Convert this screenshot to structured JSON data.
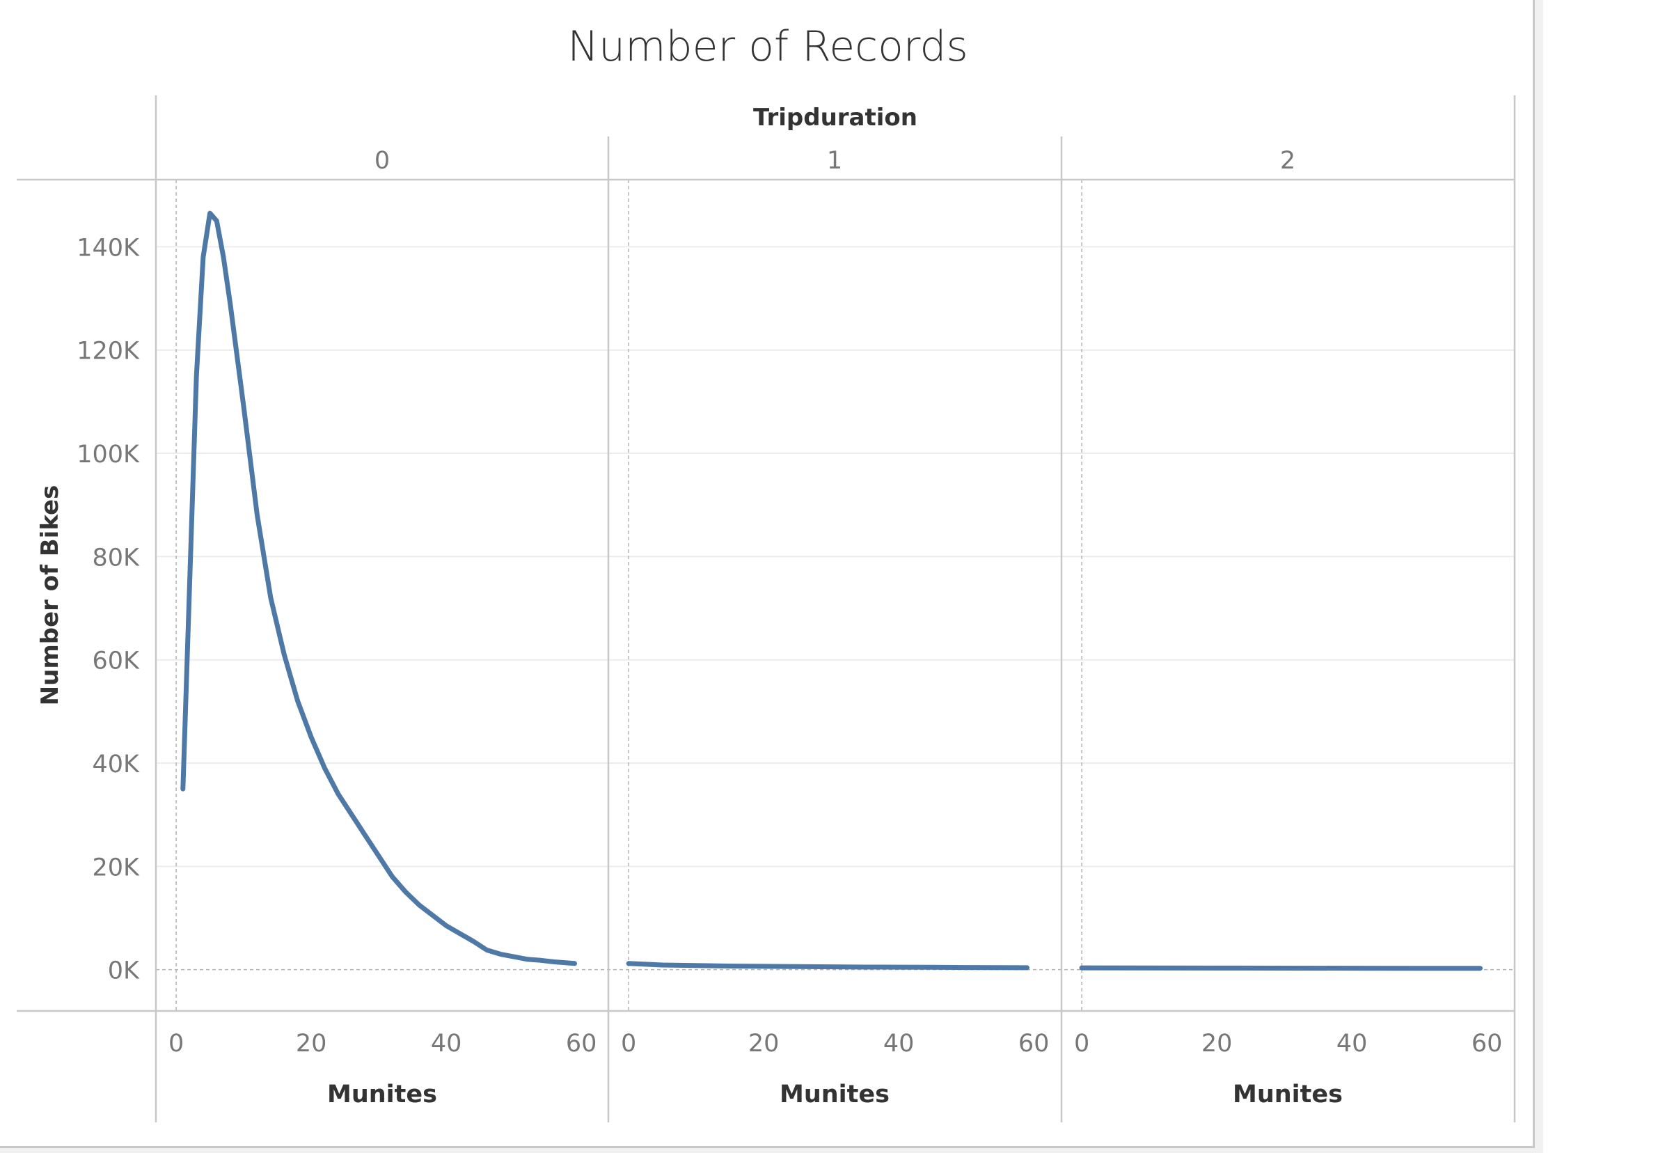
{
  "chart_data": {
    "type": "line",
    "title": "Number of Records",
    "column_header_title": "Tripduration",
    "ylabel": "Number of Bikes",
    "xlabel": "Munites",
    "ylim": [
      -8000,
      153000
    ],
    "xlim": [
      -3,
      64
    ],
    "y_ticks": [
      0,
      20000,
      40000,
      60000,
      80000,
      100000,
      120000,
      140000
    ],
    "y_tick_labels": [
      "0K",
      "20K",
      "40K",
      "60K",
      "80K",
      "100K",
      "120K",
      "140K"
    ],
    "x_ticks": [
      0,
      20,
      40,
      60
    ],
    "x_tick_labels": [
      "0",
      "20",
      "40",
      "60"
    ],
    "grid": true,
    "line_color": "#4e79a7",
    "panels": [
      {
        "label": "0",
        "x": [
          1,
          2,
          3,
          4,
          5,
          6,
          7,
          8,
          9,
          10,
          12,
          14,
          16,
          18,
          20,
          22,
          24,
          26,
          28,
          30,
          32,
          34,
          36,
          38,
          40,
          42,
          44,
          46,
          48,
          50,
          52,
          54,
          56,
          58,
          59
        ],
        "y": [
          35000,
          75000,
          115000,
          138000,
          146500,
          145000,
          138000,
          129000,
          119000,
          109000,
          88000,
          72000,
          61000,
          52000,
          45000,
          39000,
          34000,
          30000,
          26000,
          22000,
          18000,
          15000,
          12500,
          10500,
          8500,
          7000,
          5500,
          3800,
          3000,
          2500,
          2000,
          1800,
          1500,
          1300,
          1200
        ]
      },
      {
        "label": "1",
        "x": [
          0,
          5,
          10,
          15,
          20,
          25,
          30,
          35,
          40,
          45,
          50,
          55,
          59
        ],
        "y": [
          1200,
          900,
          800,
          700,
          650,
          600,
          550,
          500,
          480,
          450,
          420,
          400,
          380
        ]
      },
      {
        "label": "2",
        "x": [
          0,
          10,
          20,
          30,
          40,
          50,
          59
        ],
        "y": [
          350,
          330,
          310,
          290,
          280,
          270,
          260
        ]
      }
    ]
  }
}
